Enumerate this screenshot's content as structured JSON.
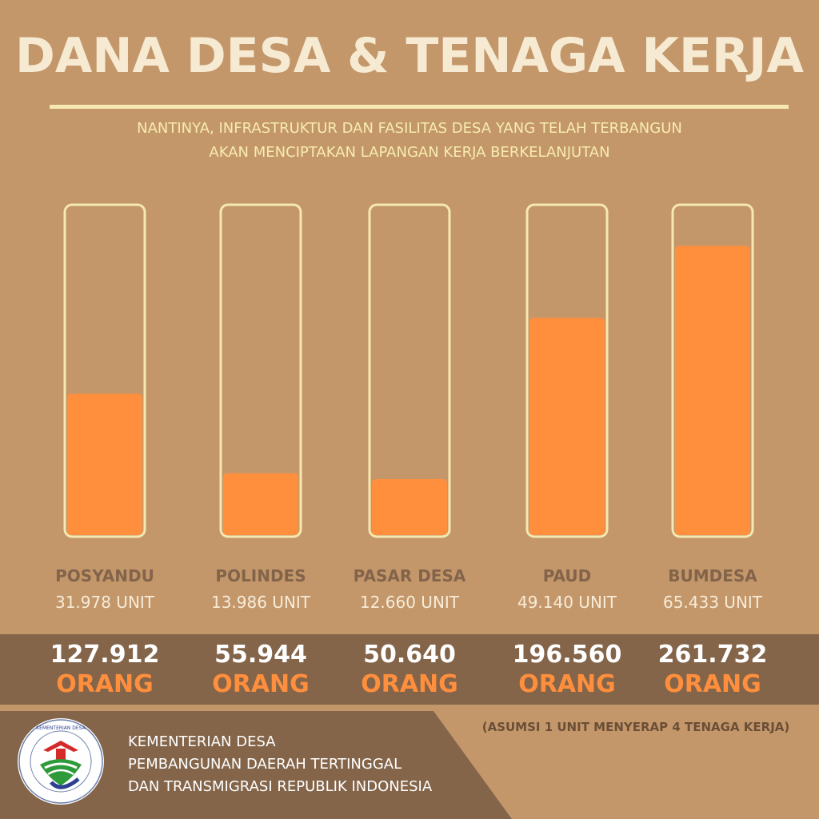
{
  "title": "DANA DESA & TENAGA KERJA",
  "subtitle_lines": [
    "NANTINYA, INFRASTRUKTUR DAN FASILITAS DESA YANG TELAH TERBANGUN",
    "AKAN MENCIPTAKAN LAPANGAN KERJA BERKELANJUTAN"
  ],
  "colors": {
    "background": "#c4976b",
    "fill": "#ff8e3d",
    "outline": "#f5e8b0",
    "band": "#84654a"
  },
  "chart_data": {
    "type": "bar",
    "categories": [
      "POSYANDU",
      "POLINDES",
      "PASAR DESA",
      "PAUD",
      "BUMDESA"
    ],
    "values": [
      31978,
      13986,
      12660,
      49140,
      65433
    ],
    "value_labels": [
      "31.978 UNIT",
      "13.986 UNIT",
      "12.660 UNIT",
      "49.140 UNIT",
      "65.433 UNIT"
    ],
    "workers": [
      127912,
      55944,
      50640,
      196560,
      261732
    ],
    "worker_labels": [
      "127.912",
      "55.944",
      "50.640",
      "196.560",
      "261.732"
    ],
    "worker_unit": "ORANG",
    "ylim": [
      0,
      74000
    ],
    "title": "",
    "xlabel": "",
    "ylabel": ""
  },
  "assumption": "(ASUMSI 1 UNIT MENYERAP 4 TENAGA KERJA)",
  "organization": {
    "lines": [
      "KEMENTERIAN DESA",
      "PEMBANGUNAN DAERAH TERTINGGAL",
      "DAN TRANSMIGRASI REPUBLIK INDONESIA"
    ],
    "logo_text": "KEMENTERIAN DESA, PEMBANGUNAN DAERAH TERTINGGAL DAN TRANSMIGRASI"
  }
}
